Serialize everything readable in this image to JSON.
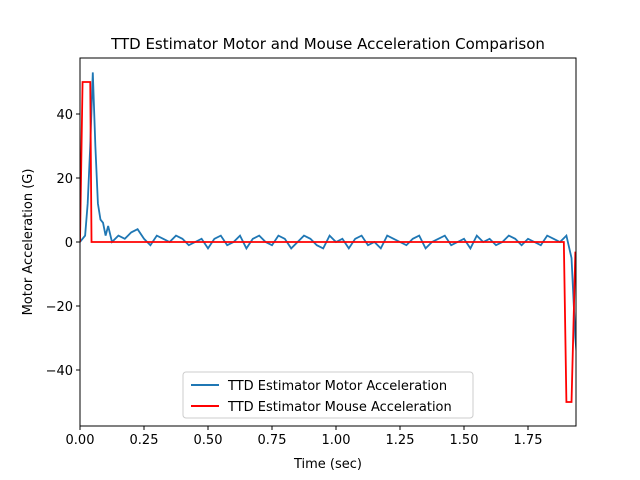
{
  "chart_data": {
    "type": "line",
    "title": "TTD Estimator Motor and Mouse Acceleration Comparison",
    "x_label": "Time (sec)",
    "y_label": "Motor Acceleration (G)",
    "xlim": [
      0,
      1.9375
    ],
    "ylim": [
      -57.5,
      57.5
    ],
    "xticks": [
      {
        "value": 0,
        "label": "0.00"
      },
      {
        "value": 0.25,
        "label": "0.25"
      },
      {
        "value": 0.5,
        "label": "0.50"
      },
      {
        "value": 0.75,
        "label": "0.75"
      },
      {
        "value": 1,
        "label": "1.00"
      },
      {
        "value": 1.25,
        "label": "1.25"
      },
      {
        "value": 1.5,
        "label": "1.50"
      },
      {
        "value": 1.75,
        "label": "1.75"
      }
    ],
    "yticks": [
      {
        "value": -40,
        "label": "−40"
      },
      {
        "value": -20,
        "label": "−20"
      },
      0,
      20,
      40
    ],
    "legend": "lower center",
    "series": [
      {
        "name": "TTD Estimator Motor Acceleration",
        "color": "#1f77b4",
        "x": [
          0,
          0.02,
          0.03,
          0.04,
          0.05,
          0.06,
          0.07,
          0.08,
          0.09,
          0.1,
          0.11,
          0.125,
          0.15,
          0.175,
          0.2,
          0.225,
          0.25,
          0.275,
          0.3,
          0.325,
          0.35,
          0.375,
          0.4,
          0.425,
          0.45,
          0.475,
          0.5,
          0.525,
          0.55,
          0.575,
          0.6,
          0.625,
          0.65,
          0.675,
          0.7,
          0.725,
          0.75,
          0.775,
          0.8,
          0.825,
          0.85,
          0.875,
          0.9,
          0.925,
          0.95,
          0.975,
          1,
          1.025,
          1.05,
          1.075,
          1.1,
          1.125,
          1.15,
          1.175,
          1.2,
          1.225,
          1.25,
          1.275,
          1.3,
          1.325,
          1.35,
          1.375,
          1.4,
          1.425,
          1.45,
          1.475,
          1.5,
          1.525,
          1.55,
          1.575,
          1.6,
          1.625,
          1.65,
          1.675,
          1.7,
          1.725,
          1.75,
          1.775,
          1.8,
          1.825,
          1.85,
          1.875,
          1.9,
          1.92,
          1.935,
          1.94
        ],
        "values": [
          0,
          2,
          12,
          30,
          53,
          30,
          12,
          7,
          6,
          2,
          5,
          0,
          2,
          1,
          3,
          4,
          1,
          -1,
          2,
          1,
          0,
          2,
          1,
          -1,
          0,
          1,
          -2,
          1,
          2,
          -1,
          0,
          2,
          -2,
          1,
          2,
          0,
          -1,
          2,
          1,
          -2,
          0,
          2,
          1,
          -1,
          -2,
          2,
          0,
          1,
          -2,
          1,
          2,
          -1,
          0,
          -2,
          2,
          1,
          0,
          -1,
          1,
          2,
          -2,
          0,
          1,
          2,
          -1,
          0,
          1,
          -2,
          2,
          0,
          1,
          -1,
          0,
          2,
          1,
          -1,
          1,
          0,
          -1,
          2,
          1,
          0,
          2,
          -5,
          -30,
          -35
        ]
      },
      {
        "name": "TTD Estimator Mouse Acceleration",
        "color": "#ff0000",
        "x": [
          0,
          0.01,
          0.04,
          0.045,
          1.89,
          1.9,
          1.92,
          1.935
        ],
        "values": [
          0,
          50,
          50,
          0,
          0,
          -50,
          -50,
          -3
        ]
      }
    ]
  }
}
